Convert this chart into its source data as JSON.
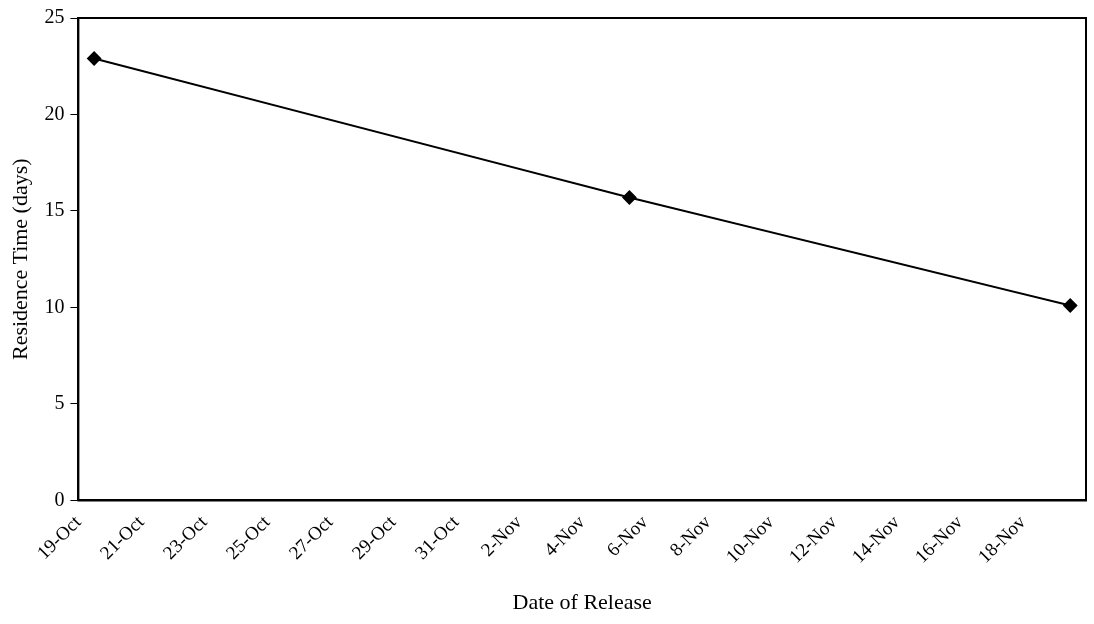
{
  "chart_data": {
    "type": "line",
    "xlabel": "Date of Release",
    "ylabel": "Residence Time (days)",
    "x": [
      "--10-19T12:00",
      "--11-05T12:00",
      "--11-19T12:00"
    ],
    "series": [
      {
        "color": "#000000",
        "values": [
          22.9,
          15.7,
          10.1
        ]
      }
    ],
    "xlim": [
      "--10-19",
      "--11-20"
    ],
    "xticks": [
      {
        "value": "--10-19",
        "label": "19-Oct"
      },
      {
        "value": "--10-21",
        "label": "21-Oct"
      },
      {
        "value": "--10-23",
        "label": "23-Oct"
      },
      {
        "value": "--10-25",
        "label": "25-Oct"
      },
      {
        "value": "--10-27",
        "label": "27-Oct"
      },
      {
        "value": "--10-29",
        "label": "29-Oct"
      },
      {
        "value": "--10-31",
        "label": "31-Oct"
      },
      {
        "value": "--11-02",
        "label": "2-Nov"
      },
      {
        "value": "--11-04",
        "label": "4-Nov"
      },
      {
        "value": "--11-06",
        "label": "6-Nov"
      },
      {
        "value": "--11-08",
        "label": "8-Nov"
      },
      {
        "value": "--11-10",
        "label": "10-Nov"
      },
      {
        "value": "--11-12",
        "label": "12-Nov"
      },
      {
        "value": "--11-14",
        "label": "14-Nov"
      },
      {
        "value": "--11-16",
        "label": "16-Nov"
      },
      {
        "value": "--11-18",
        "label": "18-Nov"
      }
    ],
    "ylim": [
      0,
      25
    ],
    "yticks": [
      0,
      5,
      10,
      15,
      20,
      25
    ],
    "grid": false,
    "legend": false,
    "marker": "diamond",
    "line_style": "solid"
  }
}
